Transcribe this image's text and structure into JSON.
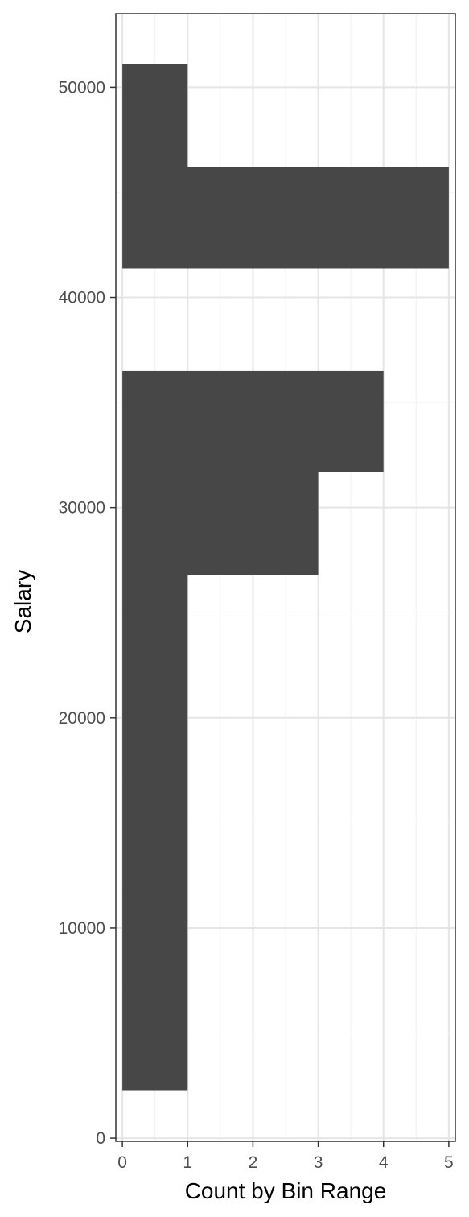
{
  "chart_data": {
    "type": "bar",
    "orientation": "horizontal",
    "title": "",
    "xlabel": "Count by Bin Range",
    "ylabel": "Salary",
    "xlim": [
      -0.1,
      5.1
    ],
    "ylim": [
      -150,
      53500
    ],
    "x_ticks": [
      0,
      1,
      2,
      3,
      4,
      5
    ],
    "y_ticks": [
      0,
      10000,
      20000,
      30000,
      40000,
      50000
    ],
    "grid": true,
    "legend": "none",
    "bins": [
      {
        "y_start": 2300,
        "y_end": 7200,
        "count": 1
      },
      {
        "y_start": 7200,
        "y_end": 12100,
        "count": 1
      },
      {
        "y_start": 12100,
        "y_end": 17000,
        "count": 1
      },
      {
        "y_start": 17000,
        "y_end": 21900,
        "count": 1
      },
      {
        "y_start": 21900,
        "y_end": 26800,
        "count": 1
      },
      {
        "y_start": 26800,
        "y_end": 31700,
        "count": 3
      },
      {
        "y_start": 31700,
        "y_end": 36500,
        "count": 4
      },
      {
        "y_start": 36500,
        "y_end": 41400,
        "count": 0
      },
      {
        "y_start": 41400,
        "y_end": 46200,
        "count": 5
      },
      {
        "y_start": 46200,
        "y_end": 51100,
        "count": 1
      }
    ],
    "colors": {
      "bar": "#474747",
      "grid_major": "#e5e5e5",
      "grid_minor": "#f2f2f2",
      "panel_border": "#333333",
      "tick": "#333333"
    }
  }
}
